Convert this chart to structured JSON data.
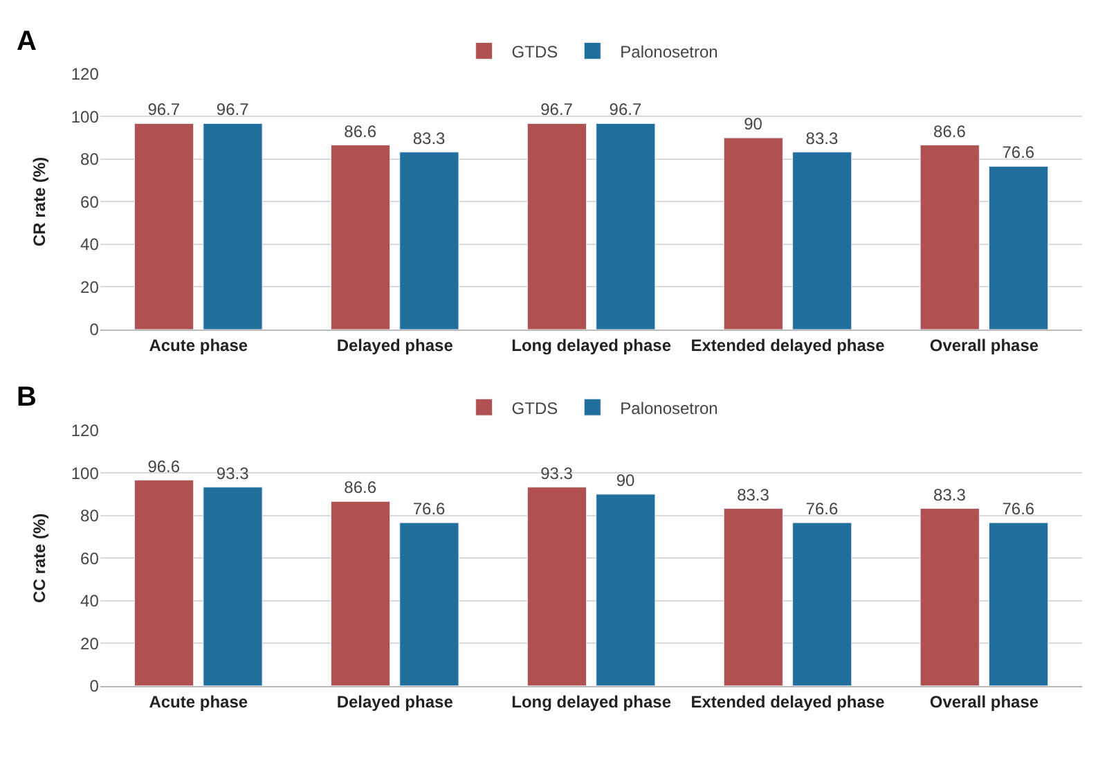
{
  "chart_data": [
    {
      "type": "bar",
      "title": "A",
      "ylabel": "CR rate (%)",
      "categories": [
        "Acute phase",
        "Delayed phase",
        "Long delayed phase",
        "Extended delayed phase",
        "Overall phase"
      ],
      "series": [
        {
          "name": "GTDS",
          "color": "#b05050",
          "values": [
            96.7,
            86.6,
            96.7,
            90,
            86.6
          ]
        },
        {
          "name": "Palonosetron",
          "color": "#1f6e9c",
          "values": [
            96.7,
            83.3,
            96.7,
            83.3,
            76.6
          ]
        }
      ],
      "ylim": [
        0,
        120
      ],
      "yticks": [
        0,
        20,
        40,
        60,
        80,
        100,
        120
      ],
      "grid": "y",
      "legend": "top",
      "data_labels": true
    },
    {
      "type": "bar",
      "title": "B",
      "ylabel": "CC rate (%)",
      "categories": [
        "Acute phase",
        "Delayed phase",
        "Long delayed phase",
        "Extended delayed phase",
        "Overall phase"
      ],
      "series": [
        {
          "name": "GTDS",
          "color": "#b05050",
          "values": [
            96.6,
            86.6,
            93.3,
            83.3,
            83.3
          ]
        },
        {
          "name": "Palonosetron",
          "color": "#1f6e9c",
          "values": [
            93.3,
            76.6,
            90,
            76.6,
            76.6
          ]
        }
      ],
      "ylim": [
        0,
        120
      ],
      "yticks": [
        0,
        20,
        40,
        60,
        80,
        100,
        120
      ],
      "grid": "y",
      "legend": "top",
      "data_labels": true
    }
  ]
}
